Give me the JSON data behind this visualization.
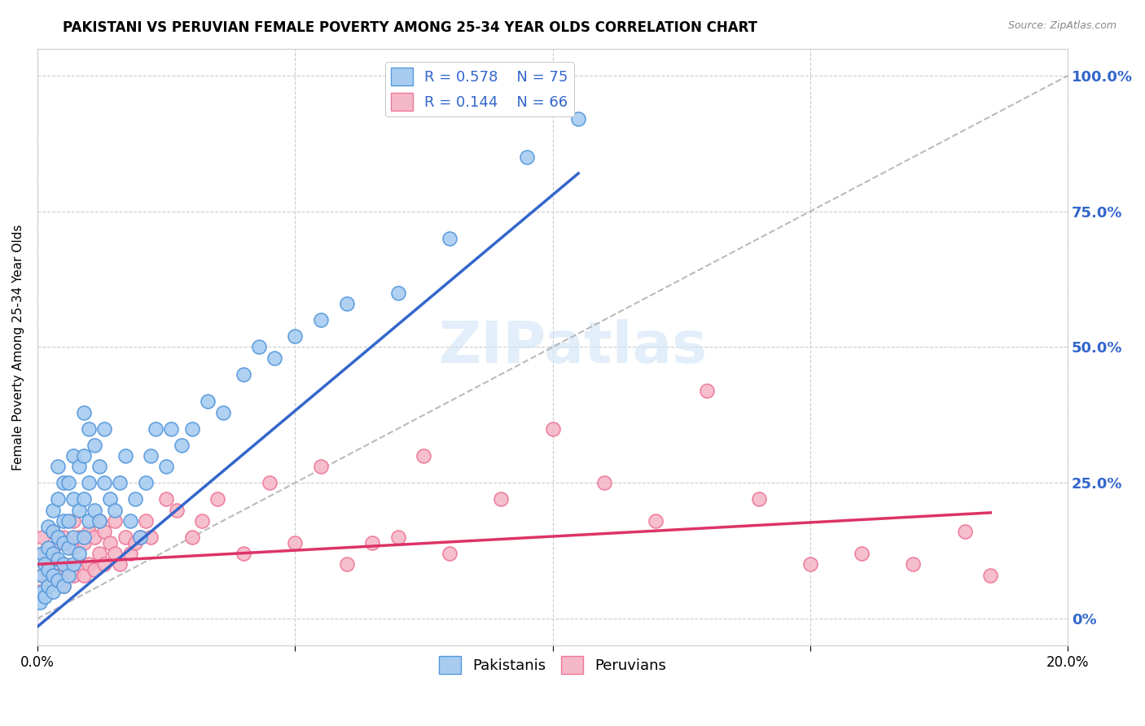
{
  "title": "PAKISTANI VS PERUVIAN FEMALE POVERTY AMONG 25-34 YEAR OLDS CORRELATION CHART",
  "source": "Source: ZipAtlas.com",
  "ylabel": "Female Poverty Among 25-34 Year Olds",
  "xlim": [
    0.0,
    0.2
  ],
  "ylim": [
    -0.05,
    1.05
  ],
  "y_ticks": [
    0.0,
    0.25,
    0.5,
    0.75,
    1.0
  ],
  "y_tick_labels_right": [
    "0%",
    "25.0%",
    "50.0%",
    "75.0%",
    "100.0%"
  ],
  "watermark": "ZIPatlas",
  "legend_r1": "R = 0.578",
  "legend_n1": "N = 75",
  "legend_r2": "R = 0.144",
  "legend_n2": "N = 66",
  "pakistani_color": "#a8ccf0",
  "peruvian_color": "#f5b8c8",
  "pakistani_edge_color": "#5599dd",
  "peruvian_edge_color": "#ee7799",
  "pakistani_line_color": "#3366cc",
  "peruvian_line_color": "#dd3366",
  "diagonal_color": "#aaaaaa",
  "background_color": "#ffffff",
  "grid_color": "#cccccc",
  "pakistani_scatter_x": [
    0.0005,
    0.001,
    0.001,
    0.001,
    0.0015,
    0.0015,
    0.002,
    0.002,
    0.002,
    0.002,
    0.003,
    0.003,
    0.003,
    0.003,
    0.003,
    0.004,
    0.004,
    0.004,
    0.004,
    0.004,
    0.005,
    0.005,
    0.005,
    0.005,
    0.005,
    0.006,
    0.006,
    0.006,
    0.006,
    0.007,
    0.007,
    0.007,
    0.007,
    0.008,
    0.008,
    0.008,
    0.009,
    0.009,
    0.009,
    0.009,
    0.01,
    0.01,
    0.01,
    0.011,
    0.011,
    0.012,
    0.012,
    0.013,
    0.013,
    0.014,
    0.015,
    0.016,
    0.017,
    0.018,
    0.019,
    0.02,
    0.021,
    0.022,
    0.023,
    0.025,
    0.026,
    0.028,
    0.03,
    0.033,
    0.036,
    0.04,
    0.043,
    0.046,
    0.05,
    0.055,
    0.06,
    0.07,
    0.08,
    0.095,
    0.105
  ],
  "pakistani_scatter_y": [
    0.03,
    0.05,
    0.08,
    0.12,
    0.04,
    0.1,
    0.06,
    0.09,
    0.13,
    0.17,
    0.05,
    0.08,
    0.12,
    0.16,
    0.2,
    0.07,
    0.11,
    0.15,
    0.22,
    0.28,
    0.06,
    0.1,
    0.14,
    0.18,
    0.25,
    0.08,
    0.13,
    0.18,
    0.25,
    0.1,
    0.15,
    0.22,
    0.3,
    0.12,
    0.2,
    0.28,
    0.15,
    0.22,
    0.3,
    0.38,
    0.18,
    0.25,
    0.35,
    0.2,
    0.32,
    0.18,
    0.28,
    0.25,
    0.35,
    0.22,
    0.2,
    0.25,
    0.3,
    0.18,
    0.22,
    0.15,
    0.25,
    0.3,
    0.35,
    0.28,
    0.35,
    0.32,
    0.35,
    0.4,
    0.38,
    0.45,
    0.5,
    0.48,
    0.52,
    0.55,
    0.58,
    0.6,
    0.7,
    0.85,
    0.92
  ],
  "peruvian_scatter_x": [
    0.0005,
    0.001,
    0.001,
    0.001,
    0.002,
    0.002,
    0.003,
    0.003,
    0.003,
    0.004,
    0.004,
    0.005,
    0.005,
    0.005,
    0.006,
    0.006,
    0.007,
    0.007,
    0.007,
    0.008,
    0.008,
    0.009,
    0.009,
    0.01,
    0.01,
    0.011,
    0.011,
    0.012,
    0.012,
    0.013,
    0.013,
    0.014,
    0.015,
    0.015,
    0.016,
    0.017,
    0.018,
    0.019,
    0.02,
    0.021,
    0.022,
    0.025,
    0.027,
    0.03,
    0.032,
    0.035,
    0.04,
    0.045,
    0.05,
    0.055,
    0.06,
    0.065,
    0.07,
    0.075,
    0.08,
    0.09,
    0.1,
    0.11,
    0.12,
    0.13,
    0.14,
    0.15,
    0.16,
    0.17,
    0.18,
    0.185
  ],
  "peruvian_scatter_y": [
    0.05,
    0.08,
    0.12,
    0.15,
    0.06,
    0.1,
    0.07,
    0.12,
    0.16,
    0.08,
    0.14,
    0.06,
    0.1,
    0.15,
    0.09,
    0.14,
    0.08,
    0.13,
    0.18,
    0.1,
    0.15,
    0.08,
    0.14,
    0.1,
    0.16,
    0.09,
    0.15,
    0.12,
    0.18,
    0.1,
    0.16,
    0.14,
    0.12,
    0.18,
    0.1,
    0.15,
    0.12,
    0.14,
    0.15,
    0.18,
    0.15,
    0.22,
    0.2,
    0.15,
    0.18,
    0.22,
    0.12,
    0.25,
    0.14,
    0.28,
    0.1,
    0.14,
    0.15,
    0.3,
    0.12,
    0.22,
    0.35,
    0.25,
    0.18,
    0.42,
    0.22,
    0.1,
    0.12,
    0.1,
    0.16,
    0.08
  ],
  "pk_line_x0": 0.0,
  "pk_line_y0": -0.015,
  "pk_line_x1": 0.105,
  "pk_line_y1": 0.82,
  "pe_line_x0": 0.0,
  "pe_line_y0": 0.1,
  "pe_line_x1": 0.185,
  "pe_line_y1": 0.195
}
